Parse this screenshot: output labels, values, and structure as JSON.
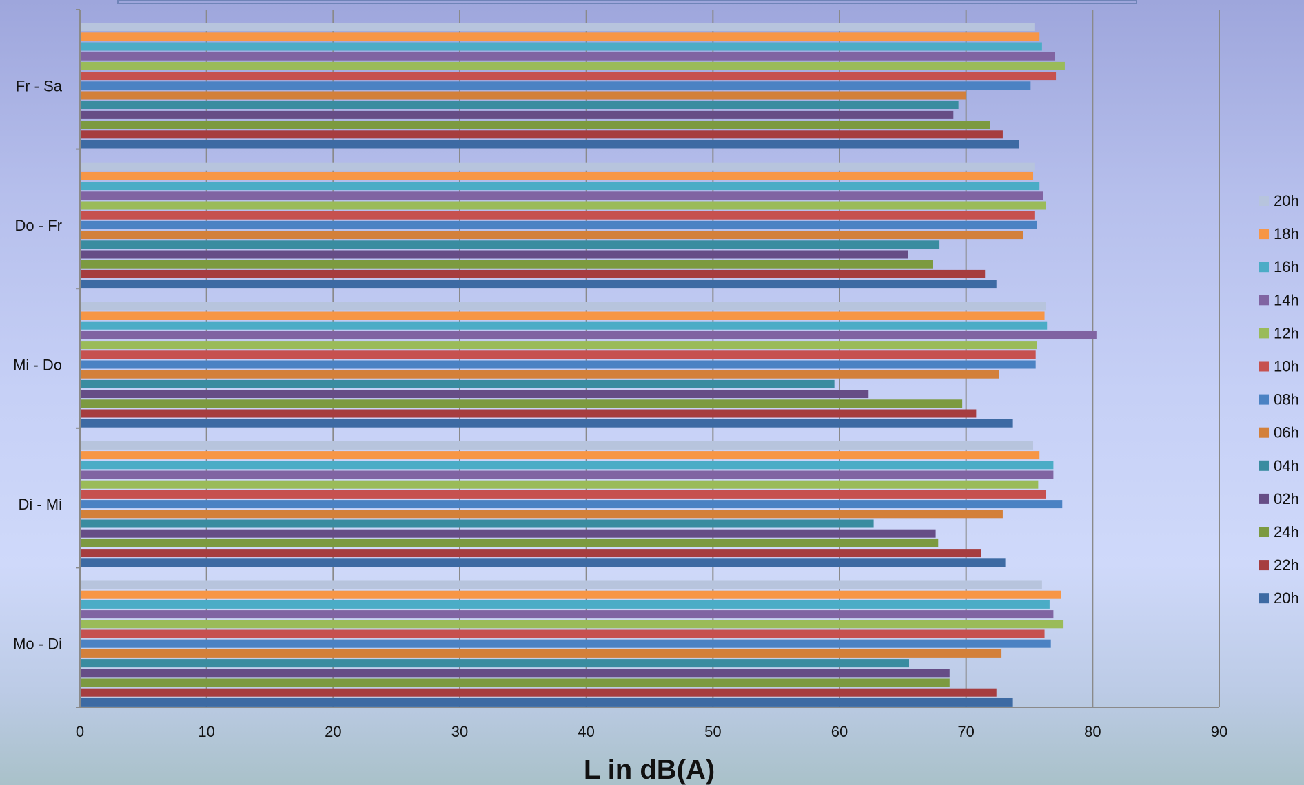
{
  "chart_data": {
    "type": "bar",
    "orientation": "horizontal",
    "xlabel": "L in dB(A)",
    "ylabel": "",
    "xlim": [
      0,
      90
    ],
    "x_ticks": [
      0,
      10,
      20,
      30,
      40,
      50,
      60,
      70,
      80,
      90
    ],
    "grid": true,
    "legend_position": "right",
    "categories": [
      "Mo - Di",
      "Di - Mi",
      "Mi - Do",
      "Do - Fr",
      "Fr - Sa"
    ],
    "series": [
      {
        "name": "20h",
        "color": "#3d6aa3",
        "values": [
          73.7,
          73.1,
          73.7,
          72.4,
          74.2
        ]
      },
      {
        "name": "22h",
        "color": "#a63d3f",
        "values": [
          72.4,
          71.2,
          70.8,
          71.5,
          72.9
        ]
      },
      {
        "name": "24h",
        "color": "#7c9a40",
        "values": [
          68.7,
          67.8,
          69.7,
          67.4,
          71.9
        ]
      },
      {
        "name": "02h",
        "color": "#664d86",
        "values": [
          68.7,
          67.6,
          62.3,
          65.4,
          69.0
        ]
      },
      {
        "name": "04h",
        "color": "#3a8ca0",
        "values": [
          65.5,
          62.7,
          59.6,
          67.9,
          69.4
        ]
      },
      {
        "name": "06h",
        "color": "#d3803a",
        "values": [
          72.8,
          72.9,
          72.6,
          74.5,
          70.0
        ]
      },
      {
        "name": "08h",
        "color": "#4b82c3",
        "values": [
          76.7,
          77.6,
          75.5,
          75.6,
          75.1
        ]
      },
      {
        "name": "10h",
        "color": "#c6514f",
        "values": [
          76.2,
          76.3,
          75.5,
          75.4,
          77.1
        ]
      },
      {
        "name": "12h",
        "color": "#9abb59",
        "values": [
          77.7,
          75.7,
          75.6,
          76.3,
          77.8
        ]
      },
      {
        "name": "14h",
        "color": "#8064a2",
        "values": [
          76.9,
          76.9,
          80.3,
          76.1,
          77.0
        ]
      },
      {
        "name": "16h",
        "color": "#4bacc6",
        "values": [
          76.6,
          76.9,
          76.4,
          75.8,
          76.0
        ]
      },
      {
        "name": "18h",
        "color": "#f79646",
        "values": [
          77.5,
          75.8,
          76.2,
          75.3,
          75.8
        ]
      },
      {
        "name": "20h",
        "color": "#b7c4dd",
        "values": [
          76.0,
          75.3,
          76.3,
          75.4,
          75.4
        ]
      }
    ]
  }
}
